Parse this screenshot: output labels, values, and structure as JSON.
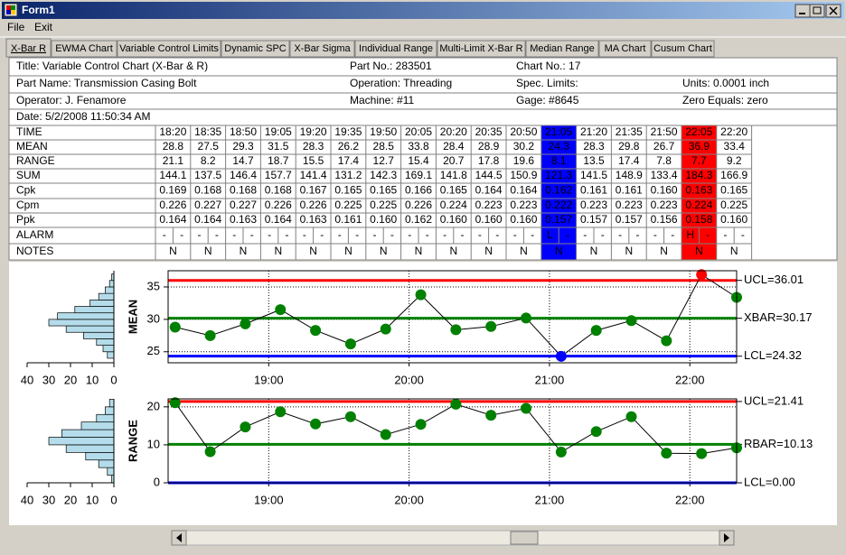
{
  "window": {
    "title": "Form1"
  },
  "menu": [
    "File",
    "Exit"
  ],
  "tabs": [
    "X-Bar R",
    "EWMA Chart",
    "Variable Control Limits",
    "Dynamic SPC",
    "X-Bar Sigma",
    "Individual Range",
    "Multi-Limit X-Bar R",
    "Median Range",
    "MA Chart",
    "Cusum Chart"
  ],
  "active_tab": 0,
  "header": [
    [
      "Title: Variable Control Chart (X-Bar & R)",
      "Part No.: 283501",
      "Chart No.: 17"
    ],
    [
      "Part Name: Transmission Casing Bolt",
      "Operation: Threading",
      "Spec. Limits:",
      "Units: 0.0001 inch"
    ],
    [
      "Operator: J. Fenamore",
      "Machine: #11",
      "Gage: #8645",
      "Zero Equals: zero"
    ],
    [
      "Date: 5/2/2008 11:50:34 AM"
    ]
  ],
  "table": {
    "row_labels": [
      "TIME",
      "MEAN",
      "RANGE",
      "SUM",
      "Cpk",
      "Cpm",
      "Ppk",
      "ALARM",
      "NOTES"
    ],
    "sum": [
      144.1,
      137.5,
      146.4,
      157.7,
      141.4,
      131.2,
      142.3,
      169.1,
      141.8,
      144.5,
      150.9,
      121.3,
      141.5,
      148.9,
      133.4,
      184.3,
      166.9
    ],
    "cpk": [
      "0.169",
      "0.168",
      "0.168",
      "0.168",
      "0.167",
      "0.165",
      "0.165",
      "0.166",
      "0.165",
      "0.164",
      "0.164",
      "0.162",
      "0.161",
      "0.161",
      "0.160",
      "0.163",
      "0.165"
    ],
    "cpm": [
      "0.226",
      "0.227",
      "0.227",
      "0.226",
      "0.226",
      "0.225",
      "0.225",
      "0.226",
      "0.224",
      "0.223",
      "0.223",
      "0.222",
      "0.223",
      "0.223",
      "0.223",
      "0.224",
      "0.225"
    ],
    "ppk": [
      "0.164",
      "0.164",
      "0.163",
      "0.164",
      "0.163",
      "0.161",
      "0.160",
      "0.162",
      "0.160",
      "0.160",
      "0.160",
      "0.157",
      "0.157",
      "0.157",
      "0.156",
      "0.158",
      "0.160"
    ],
    "alarm": [
      [
        "-",
        "-"
      ],
      [
        "-",
        "-"
      ],
      [
        "-",
        "-"
      ],
      [
        "-",
        "-"
      ],
      [
        "-",
        "-"
      ],
      [
        "-",
        "-"
      ],
      [
        "-",
        "-"
      ],
      [
        "-",
        "-"
      ],
      [
        "-",
        "-"
      ],
      [
        "-",
        "-"
      ],
      [
        "-",
        "-"
      ],
      [
        "L",
        "-"
      ],
      [
        "-",
        "-"
      ],
      [
        "-",
        "-"
      ],
      [
        "-",
        "-"
      ],
      [
        "H",
        "-"
      ],
      [
        "-",
        "-"
      ]
    ],
    "notes": [
      "N",
      "N",
      "N",
      "N",
      "N",
      "N",
      "N",
      "N",
      "N",
      "N",
      "N",
      "N",
      "N",
      "N",
      "N",
      "N",
      "N"
    ],
    "alarm_colors": {
      "L": "#0000ff",
      "H": "#ff0000"
    }
  },
  "chart_data": [
    {
      "type": "line",
      "y_label": "MEAN",
      "x": [
        "18:20",
        "18:35",
        "18:50",
        "19:05",
        "19:20",
        "19:35",
        "19:50",
        "20:05",
        "20:20",
        "20:35",
        "20:50",
        "21:05",
        "21:20",
        "21:35",
        "21:50",
        "22:05",
        "22:20"
      ],
      "values": [
        28.8,
        27.5,
        29.3,
        31.5,
        28.3,
        26.2,
        28.5,
        33.8,
        28.4,
        28.9,
        30.2,
        24.3,
        28.3,
        29.8,
        26.7,
        36.9,
        33.4
      ],
      "xlim": [
        "18:17",
        "22:20"
      ],
      "xticks": [
        "19:00",
        "20:00",
        "21:00",
        "22:00"
      ],
      "ylim": [
        23.3,
        37.5
      ],
      "yticks": [
        25,
        30,
        35
      ],
      "grid": true,
      "line_color": "#000000",
      "marker_color": "#008000",
      "above_color": "#ff0000",
      "below_color": "#0000ff",
      "limits": [
        {
          "label": "UCL=36.01",
          "value": 36.01,
          "color": "#ff0000"
        },
        {
          "label": "XBAR=30.17",
          "value": 30.17,
          "color": "#008000"
        },
        {
          "label": "LCL=24.32",
          "value": 24.32,
          "color": "#0000ff"
        }
      ]
    },
    {
      "type": "line",
      "y_label": "RANGE",
      "x": [
        "18:20",
        "18:35",
        "18:50",
        "19:05",
        "19:20",
        "19:35",
        "19:50",
        "20:05",
        "20:20",
        "20:35",
        "20:50",
        "21:05",
        "21:20",
        "21:35",
        "21:50",
        "22:05",
        "22:20"
      ],
      "values": [
        21.1,
        8.2,
        14.7,
        18.7,
        15.5,
        17.4,
        12.7,
        15.4,
        20.7,
        17.8,
        19.6,
        8.1,
        13.5,
        17.4,
        7.8,
        7.7,
        9.2
      ],
      "xlim": [
        "18:17",
        "22:20"
      ],
      "xticks": [
        "19:00",
        "20:00",
        "21:00",
        "22:00"
      ],
      "ylim": [
        0,
        22.1
      ],
      "yticks": [
        0,
        10,
        20
      ],
      "grid": true,
      "line_color": "#000000",
      "marker_color": "#008000",
      "above_color": "#ff0000",
      "below_color": "#0000ff",
      "limits": [
        {
          "label": "UCL=21.41",
          "value": 21.41,
          "color": "#ff0000"
        },
        {
          "label": "RBAR=10.13",
          "value": 10.13,
          "color": "#008000"
        },
        {
          "label": "LCL=0.00",
          "value": 0,
          "color": "#0000ff"
        }
      ]
    },
    {
      "type": "histogram",
      "orientation": "horizontal",
      "bins": [
        24,
        25,
        26,
        27,
        28,
        29,
        30,
        31,
        32,
        33,
        34,
        35,
        36,
        37
      ],
      "counts": [
        3,
        5,
        8,
        14,
        22,
        30,
        26,
        18,
        11,
        7,
        4,
        2,
        1
      ],
      "xlim": [
        40,
        0
      ],
      "xticks": [
        40,
        30,
        20,
        10,
        0
      ],
      "ylim": [
        23.3,
        37.5
      ],
      "color": "#b4dcea"
    },
    {
      "type": "histogram",
      "orientation": "horizontal",
      "bins": [
        0,
        2,
        4,
        6,
        8,
        10,
        12,
        14,
        16,
        18,
        20,
        22
      ],
      "counts": [
        1,
        3,
        7,
        13,
        22,
        30,
        24,
        15,
        8,
        4,
        2
      ],
      "xlim": [
        40,
        0
      ],
      "xticks": [
        40,
        30,
        20,
        10,
        0
      ],
      "ylim": [
        0,
        22.1
      ],
      "color": "#b4dcea"
    }
  ]
}
